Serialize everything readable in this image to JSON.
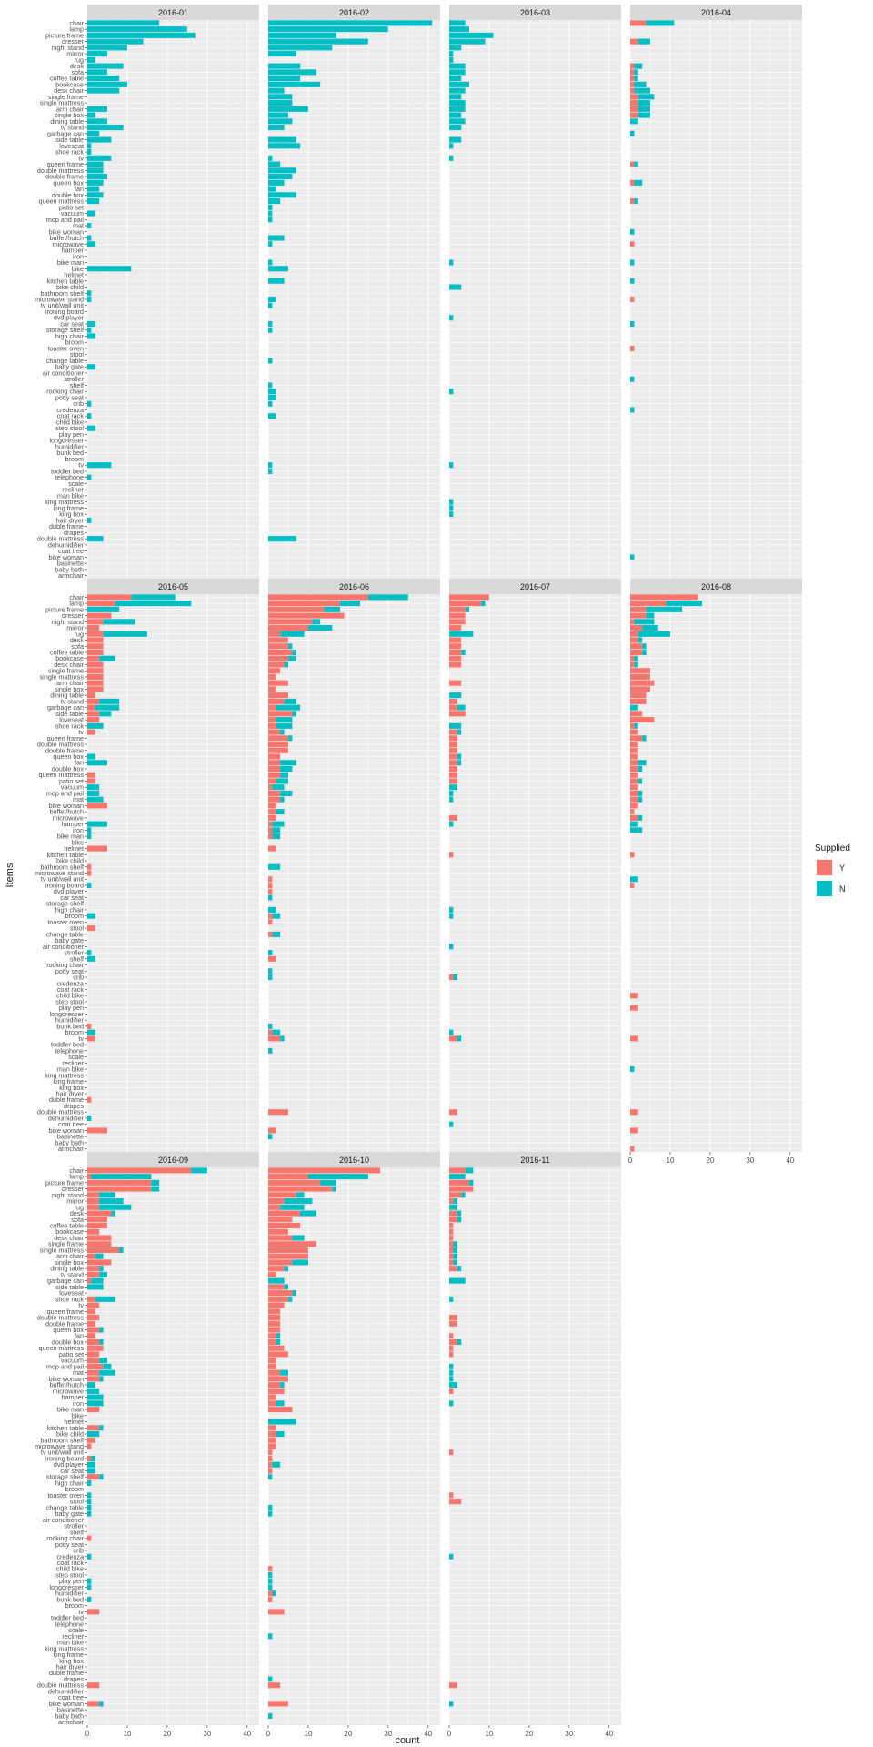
{
  "chart_data": {
    "type": "bar",
    "orientation": "horizontal",
    "stacked": true,
    "xlabel": "count",
    "ylabel": "Items",
    "xlim": [
      0,
      43
    ],
    "x_ticks": [
      0,
      10,
      20,
      30,
      40
    ],
    "legend": {
      "title": "Supplied",
      "position": "right",
      "entries": [
        "Y",
        "N"
      ]
    },
    "colors": {
      "Y": "#F8766D",
      "N": "#00BFC4",
      "panel_bg": "#EBEBEB",
      "strip_bg": "#D9D9D9",
      "grid": "#FFFFFF"
    },
    "grid": true,
    "facets": [
      "2016-01",
      "2016-02",
      "2016-03",
      "2016-04",
      "2016-05",
      "2016-06",
      "2016-07",
      "2016-08",
      "2016-09",
      "2016-10",
      "2016-11"
    ],
    "items": [
      "chair",
      "lamp",
      "picture frame",
      "dresser",
      "night stand",
      "mirror",
      "rug",
      "desk",
      "sofa",
      "coffee table",
      "bookcase",
      "desk chair",
      "single frame",
      "single mattress",
      "arm chair",
      "single box",
      "dining table",
      "tv stand",
      "garbage can",
      "side table",
      "loveseat",
      "shoe rack",
      "tv",
      "queen frame",
      "double mattress",
      "double frame",
      "queen box",
      "fan",
      "double box",
      "queen mattress",
      "patio set",
      "vacuum",
      "mop and pail",
      "mat",
      "bike woman",
      "buffet/hutch",
      "microwave",
      "hamper",
      "iron",
      "bike man",
      "bike",
      "helmet",
      "kitchen table",
      "bike child",
      "bathroom shelf",
      "microwave stand",
      "tv unit/wall unit",
      "ironing board",
      "dvd player",
      "car seat",
      "storage shelf",
      "high chair",
      "broom",
      "toaster oven",
      "stool",
      "change table",
      "baby gate",
      "air conditioner",
      "stroller",
      "shelf",
      "rocking chair",
      "potty seat",
      "crib",
      "credenza",
      "coat rack",
      "child bike",
      "step stool",
      "play pen",
      "longdresser",
      "humidifier",
      "bunk bed",
      "broom",
      "tv",
      "toddler bed",
      "telephone",
      "scale",
      "recliner",
      "man bike",
      "king mattress",
      "king frame",
      "king box",
      "hair dryer",
      "duble frame",
      "drapes",
      "double mattress",
      "dehumidifier",
      "coat tree",
      "bike woman",
      "basinette",
      "baby bath",
      "armchair"
    ],
    "series": [
      {
        "name": "2016-01",
        "Y": {},
        "N": {
          "chair": 18,
          "lamp": 25,
          "picture frame": 27,
          "dresser": 14,
          "night stand": 10,
          "mirror": 5,
          "rug": 2,
          "desk": 9,
          "sofa": 5,
          "coffee table": 8,
          "bookcase": 10,
          "desk chair": 8,
          "arm chair": 5,
          "single box": 2,
          "dining table": 5,
          "tv stand": 9,
          "garbage can": 3,
          "side table": 6,
          "loveseat": 1,
          "shoe rack": 1,
          "tv": 6,
          "queen frame": 4,
          "double mattress": 4,
          "double frame": 5,
          "queen box": 4,
          "fan": 3,
          "double box": 4,
          "queen mattress": 3,
          "vacuum": 2,
          "mat": 1,
          "buffet/hutch": 1,
          "microwave": 2,
          "bike": 11,
          "bathroom shelf": 1,
          "microwave stand": 1,
          "car seat": 2,
          "storage shelf": 1,
          "high chair": 2,
          "baby gate": 2,
          "crib": 1,
          "coat rack": 1,
          "step stool": 2,
          "telephone": 1,
          "hair dryer": 1,
          "double mattress#2": 1
        }
      },
      {
        "name": "2016-02",
        "Y": {},
        "N": {
          "chair": 41,
          "lamp": 30,
          "picture frame": 17,
          "dresser": 25,
          "night stand": 16,
          "mirror": 7,
          "desk": 8,
          "sofa": 12,
          "coffee table": 8,
          "bookcase": 13,
          "desk chair": 4,
          "single frame": 6,
          "single mattress": 6,
          "arm chair": 10,
          "single box": 5,
          "dining table": 6,
          "tv stand": 4,
          "side table": 7,
          "loveseat": 8,
          "tv": 1,
          "queen frame": 3,
          "double mattress": 7,
          "double frame": 6,
          "queen box": 4,
          "fan": 2,
          "double box": 7,
          "queen mattress": 3,
          "patio set": 1,
          "vacuum": 1,
          "mop and pail": 1,
          "buffet/hutch": 4,
          "microwave": 1,
          "bike man": 1,
          "bike": 5,
          "kitchen table": 4,
          "microwave stand": 2,
          "tv unit/wall unit": 1,
          "car seat": 1,
          "storage shelf": 1,
          "change table": 1,
          "shelf": 1,
          "rocking chair": 2,
          "potty seat": 2,
          "crib": 1,
          "coat rack": 2,
          "toddler bed": 1,
          "bike woman#2": 1
        }
      },
      {
        "name": "2016-03",
        "Y": {},
        "N": {
          "chair": 4,
          "lamp": 5,
          "picture frame": 11,
          "dresser": 9,
          "night stand": 3,
          "mirror": 1,
          "rug": 1,
          "desk": 4,
          "sofa": 4,
          "coffee table": 3,
          "bookcase": 5,
          "desk chair": 4,
          "single frame": 3,
          "single mattress": 4,
          "arm chair": 4,
          "single box": 3,
          "dining table": 4,
          "tv stand": 3,
          "side table": 3,
          "loveseat": 1,
          "tv": 1,
          "bike man": 1,
          "bike child": 3,
          "dvd player": 1,
          "rocking chair": 1,
          "king mattress": 1,
          "king frame": 1,
          "king box": 1
        }
      },
      {
        "name": "2016-04",
        "Y": {
          "chair": 4,
          "dresser": 2,
          "desk": 1,
          "sofa": 1,
          "coffee table": 1,
          "bookcase": 1,
          "desk chair": 1,
          "single frame": 2,
          "single mattress": 2,
          "arm chair": 2,
          "single box": 2,
          "queen frame": 1,
          "queen box": 1,
          "queen mattress": 1,
          "microwave": 1,
          "microwave stand": 1,
          "toaster oven": 1
        },
        "N": {
          "chair": 7,
          "dresser": 3,
          "desk": 2,
          "sofa": 1,
          "coffee table": 1,
          "bookcase": 3,
          "desk chair": 4,
          "single frame": 4,
          "single mattress": 3,
          "arm chair": 3,
          "single box": 3,
          "dining table": 2,
          "garbage can": 1,
          "queen frame": 1,
          "queen box": 2,
          "queen mattress": 1,
          "bike woman": 1,
          "bike man": 1,
          "kitchen table": 1,
          "car seat": 1,
          "stroller": 1,
          "credenza": 1
        }
      },
      {
        "name": "2016-05",
        "Y": {
          "chair": 11,
          "lamp": 7,
          "night stand": 4,
          "dresser": 6,
          "mirror": 3,
          "rug": 4,
          "desk": 4,
          "sofa": 4,
          "coffee table": 4,
          "bookcase": 3,
          "desk chair": 4,
          "single frame": 4,
          "single mattress": 4,
          "arm chair": 4,
          "single box": 4,
          "dining table": 2,
          "tv stand": 3,
          "garbage can": 2,
          "side table": 3,
          "loveseat": 3,
          "tv": 2,
          "queen mattress": 2,
          "bike woman": 5,
          "patio set": 2,
          "helmet": 5,
          "microwave stand": 1,
          "bathroom shelf": 1,
          "stool": 2,
          "bunk bed": 1,
          "duble frame": 1
        },
        "N": {
          "chair": 11,
          "lamp": 19,
          "picture frame": 8,
          "night stand": 8,
          "rug": 11,
          "bookcase": 4,
          "tv stand": 5,
          "garbage can": 6,
          "side table": 3,
          "shoe rack": 4,
          "fan": 5,
          "queen box": 2,
          "vacuum": 3,
          "mop and pail": 3,
          "mat": 4,
          "hamper": 5,
          "iron": 1,
          "bike man": 1,
          "ironing board": 1,
          "broom": 2,
          "shelf": 2,
          "stroller": 1,
          "dehumidifier": 1
        }
      },
      {
        "name": "2016-06",
        "Y": {
          "chair": 25,
          "lamp": 18,
          "picture frame": 14,
          "dresser": 19,
          "night stand": 11,
          "mirror": 10,
          "rug": 3,
          "desk": 5,
          "sofa": 5,
          "coffee table": 6,
          "bookcase": 5,
          "desk chair": 4,
          "single frame": 3,
          "single mattress": 2,
          "arm chair": 5,
          "single box": 2,
          "dining table": 5,
          "tv stand": 4,
          "garbage can": 2,
          "side table": 6,
          "loveseat": 2,
          "shoe rack": 2,
          "tv": 3,
          "queen frame": 5,
          "double mattress": 5,
          "double frame": 5,
          "queen box": 3,
          "fan": 3,
          "double box": 3,
          "queen mattress": 3,
          "patio set": 2,
          "vacuum": 1,
          "mop and pail": 3,
          "mat": 3,
          "bike woman": 2,
          "buffet/hutch": 2,
          "microwave": 2,
          "hamper": 1,
          "iron": 1,
          "bike man": 1,
          "helmet": 2,
          "tv unit/wall unit": 1,
          "ironing board": 1,
          "dvd player": 1,
          "broom": 1,
          "toaster oven": 1,
          "change table": 1,
          "shelf": 2
        },
        "N": {
          "chair": 10,
          "lamp": 5,
          "picture frame": 4,
          "night stand": 2,
          "mirror": 6,
          "rug": 6,
          "sofa": 1,
          "coffee table": 1,
          "bookcase": 2,
          "desk chair": 1,
          "tv stand": 3,
          "garbage can": 6,
          "side table": 1,
          "loveseat": 4,
          "shoe rack": 4,
          "tv": 1,
          "queen frame": 1,
          "fan": 4,
          "double box": 3,
          "queen mattress": 2,
          "patio set": 3,
          "vacuum": 3,
          "mop and pail": 3,
          "mat": 1,
          "buffet/hutch": 2,
          "hamper": 3,
          "iron": 2,
          "bike man": 2,
          "bathroom shelf": 3,
          "car seat": 1,
          "high chair": 2,
          "broom": 2,
          "change table": 2,
          "stroller": 1,
          "potty seat": 1,
          "crib": 1,
          "bunk bed": 1,
          "telephone": 1,
          "basinette": 1
        }
      },
      {
        "name": "2016-07",
        "Y": {
          "chair": 10,
          "lamp": 8,
          "picture frame": 4,
          "dresser": 4,
          "night stand": 4,
          "mirror": 3,
          "desk": 3,
          "sofa": 3,
          "coffee table": 3,
          "bookcase": 3,
          "desk chair": 3,
          "arm chair": 3,
          "tv stand": 2,
          "garbage can": 2,
          "side table": 4,
          "tv": 2,
          "queen frame": 2,
          "double mattress": 2,
          "double frame": 2,
          "queen box": 2,
          "fan": 2,
          "double box": 2,
          "queen mattress": 2,
          "patio set": 2,
          "microwave": 2,
          "kitchen table": 1,
          "crib": 1
        },
        "N": {
          "picture frame": 1,
          "lamp": 1,
          "rug": 6,
          "coffee table": 1,
          "dining table": 3,
          "garbage can": 2,
          "shoe rack": 3,
          "tv": 1,
          "queen box": 1,
          "fan": 1,
          "vacuum": 2,
          "mop and pail": 1,
          "mat": 1,
          "hamper": 1,
          "high chair": 1,
          "broom": 1,
          "air conditioner": 1,
          "crib": 1,
          "coat tree": 1
        }
      },
      {
        "name": "2016-08",
        "Y": {
          "chair": 17,
          "lamp": 9,
          "picture frame": 4,
          "dresser": 4,
          "night stand": 1,
          "mirror": 3,
          "rug": 2,
          "desk": 2,
          "sofa": 3,
          "coffee table": 3,
          "bookcase": 1,
          "desk chair": 1,
          "single frame": 5,
          "single mattress": 5,
          "arm chair": 6,
          "single box": 5,
          "dining table": 4,
          "tv stand": 4,
          "side table": 3,
          "loveseat": 6,
          "shoe rack": 1,
          "tv": 2,
          "queen frame": 3,
          "double mattress": 2,
          "double frame": 2,
          "queen box": 2,
          "fan": 2,
          "double box": 2,
          "queen mattress": 2,
          "patio set": 2,
          "vacuum": 2,
          "mop and pail": 2,
          "mat": 2,
          "bike woman": 2,
          "buffet/hutch": 1,
          "microwave": 2,
          "kitchen table": 1,
          "ironing board": 1,
          "child bike": 2,
          "play pen": 2,
          "armchair": 1
        },
        "N": {
          "lamp": 9,
          "picture frame": 9,
          "dresser": 2,
          "night stand": 5,
          "mirror": 4,
          "rug": 8,
          "desk": 1,
          "sofa": 1,
          "coffee table": 1,
          "bookcase": 1,
          "desk chair": 1,
          "garbage can": 2,
          "shoe rack": 1,
          "queen frame": 1,
          "fan": 2,
          "double box": 1,
          "patio set": 1,
          "mop and pail": 1,
          "mat": 1,
          "microwave": 1,
          "hamper": 2,
          "iron": 3,
          "tv unit/wall unit": 2,
          "man bike": 1
        }
      },
      {
        "name": "2016-09",
        "Y": {
          "chair": 26,
          "lamp": 1,
          "picture frame": 16,
          "dresser": 16,
          "night stand": 3,
          "mirror": 3,
          "rug": 3,
          "desk": 6,
          "sofa": 5,
          "coffee table": 5,
          "bookcase": 3,
          "desk chair": 6,
          "single frame": 6,
          "single mattress": 8,
          "arm chair": 2,
          "single box": 6,
          "dining table": 3,
          "tv stand": 3,
          "garbage can": 1,
          "shoe rack": 2,
          "tv": 3,
          "queen frame": 2,
          "double mattress": 3,
          "double frame": 2,
          "queen box": 3,
          "fan": 2,
          "double box": 3,
          "queen mattress": 4,
          "patio set": 3,
          "vacuum": 3,
          "mop and pail": 4,
          "mat": 3,
          "bike woman": 3,
          "bike man": 3,
          "kitchen table": 3,
          "bathroom shelf": 2,
          "microwave stand": 1,
          "ironing board": 1,
          "storage shelf": 3,
          "rocking chair": 1
        },
        "N": {
          "chair": 4,
          "lamp": 15,
          "picture frame": 2,
          "dresser": 2,
          "night stand": 4,
          "mirror": 6,
          "rug": 8,
          "desk": 1,
          "single mattress": 1,
          "arm chair": 2,
          "dining table": 1,
          "tv stand": 2,
          "garbage can": 3,
          "side table": 4,
          "shoe rack": 5,
          "queen box": 1,
          "double box": 1,
          "vacuum": 2,
          "mop and pail": 2,
          "mat": 4,
          "bike woman": 1,
          "buffet/hutch": 2,
          "microwave": 3,
          "hamper": 4,
          "iron": 4,
          "kitchen table": 1,
          "bike child": 3,
          "ironing board": 1,
          "dvd player": 2,
          "car seat": 2,
          "storage shelf": 1,
          "high chair": 1,
          "toaster oven": 1,
          "stool": 1,
          "change table": 1,
          "baby gate": 1,
          "credenza": 1,
          "play pen": 1,
          "longdresser": 1,
          "bunk bed": 1,
          "broom#2": 1
        }
      },
      {
        "name": "2016-10",
        "Y": {
          "chair": 28,
          "lamp": 10,
          "picture frame": 13,
          "dresser": 16,
          "night stand": 7,
          "mirror": 4,
          "rug": 3,
          "desk": 8,
          "sofa": 6,
          "coffee table": 8,
          "bookcase": 5,
          "desk chair": 6,
          "single frame": 12,
          "single mattress": 10,
          "arm chair": 10,
          "single box": 6,
          "dining table": 4,
          "tv stand": 2,
          "side table": 4,
          "loveseat": 6,
          "shoe rack": 5,
          "tv": 4,
          "queen frame": 3,
          "double mattress": 3,
          "double frame": 3,
          "queen box": 3,
          "fan": 2,
          "double box": 2,
          "queen mattress": 4,
          "patio set": 5,
          "vacuum": 2,
          "mop and pail": 2,
          "mat": 3,
          "bike woman": 5,
          "buffet/hutch": 3,
          "microwave": 4,
          "hamper": 2,
          "iron": 2,
          "bike man": 6,
          "kitchen table": 2,
          "bike child": 2,
          "bathroom shelf": 2,
          "microwave stand": 2,
          "tv unit/wall unit": 1,
          "ironing board": 1,
          "dvd player": 1,
          "car seat": 1,
          "child bike": 1,
          "humidifier": 1,
          "bunk bed": 1
        },
        "N": {
          "lamp": 15,
          "picture frame": 4,
          "dresser": 1,
          "night stand": 2,
          "mirror": 7,
          "rug": 6,
          "desk": 4,
          "sofa": 0,
          "desk chair": 3,
          "single box": 4,
          "dining table": 1,
          "garbage can": 4,
          "side table": 1,
          "loveseat": 1,
          "shoe rack": 1,
          "fan": 1,
          "double box": 1,
          "mat": 2,
          "buffet/hutch": 1,
          "iron": 2,
          "helmet": 7,
          "bike child": 2,
          "dvd player": 2,
          "storage shelf": 1,
          "change table": 1,
          "baby gate": 1,
          "step stool": 1,
          "play pen": 1,
          "longdresser": 1,
          "humidifier": 1,
          "recliner": 1,
          "drapes": 1,
          "baby bath": 1
        }
      },
      {
        "name": "2016-11",
        "Y": {
          "chair": 4,
          "picture frame": 5,
          "dresser": 6,
          "night stand": 3,
          "mirror": 1,
          "desk": 2,
          "sofa": 2,
          "coffee table": 1,
          "bookcase": 1,
          "desk chair": 1,
          "single frame": 1,
          "single mattress": 1,
          "arm chair": 1,
          "single box": 1,
          "dining table": 2,
          "double mattress": 2,
          "double frame": 2,
          "fan": 1,
          "double box": 2,
          "queen mattress": 1,
          "patio set": 1,
          "microwave": 1,
          "tv unit/wall unit": 1,
          "toaster oven": 1,
          "stool": 3
        },
        "N": {
          "chair": 2,
          "lamp": 4,
          "picture frame": 1,
          "night stand": 1,
          "mirror": 1,
          "rug": 2,
          "desk": 1,
          "sofa": 1,
          "single frame": 1,
          "single mattress": 1,
          "arm chair": 1,
          "single box": 1,
          "dining table": 1,
          "garbage can": 4,
          "shoe rack": 1,
          "double box": 1,
          "mop and pail": 1,
          "mat": 1,
          "bike woman": 1,
          "buffet/hutch": 2,
          "iron": 1,
          "credenza": 1
        }
      }
    ]
  }
}
